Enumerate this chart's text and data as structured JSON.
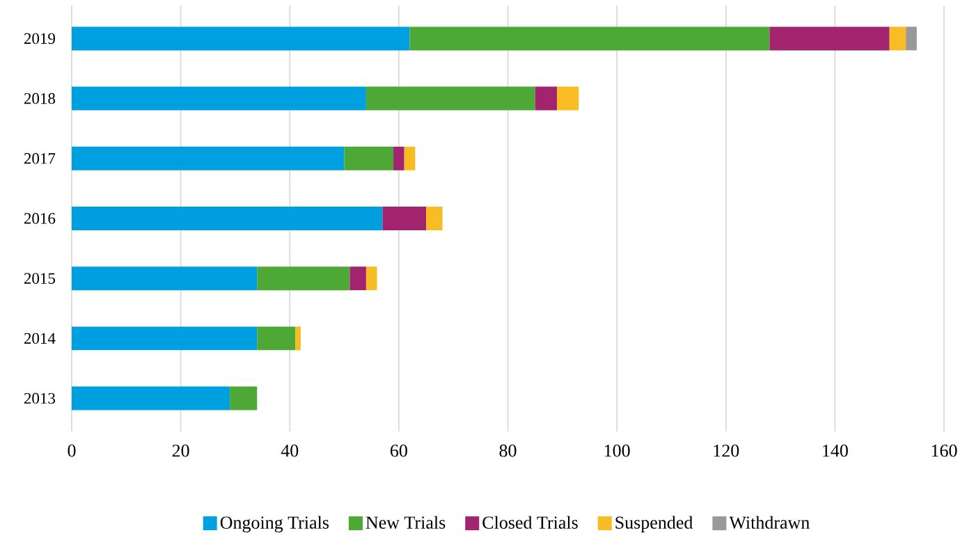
{
  "chart_data": {
    "type": "bar",
    "orientation": "horizontal",
    "stacked": true,
    "categories": [
      "2019",
      "2018",
      "2017",
      "2016",
      "2015",
      "2014",
      "2013"
    ],
    "series": [
      {
        "name": "Ongoing Trials",
        "color": "#009fe0",
        "values": [
          62,
          54,
          50,
          57,
          34,
          34,
          29
        ]
      },
      {
        "name": "New Trials",
        "color": "#4ea836",
        "values": [
          66,
          31,
          9,
          0,
          17,
          7,
          5
        ]
      },
      {
        "name": "Closed Trials",
        "color": "#a3246e",
        "values": [
          22,
          4,
          2,
          8,
          3,
          0,
          0
        ]
      },
      {
        "name": "Suspended",
        "color": "#f8bc24",
        "values": [
          3,
          4,
          2,
          3,
          2,
          1,
          0
        ]
      },
      {
        "name": "Withdrawn",
        "color": "#999999",
        "values": [
          2,
          0,
          0,
          0,
          0,
          0,
          0
        ]
      }
    ],
    "xlim": [
      0,
      160
    ],
    "xticks": [
      0,
      20,
      40,
      60,
      80,
      100,
      120,
      140,
      160
    ],
    "grid": "x",
    "legend": "bottom"
  }
}
